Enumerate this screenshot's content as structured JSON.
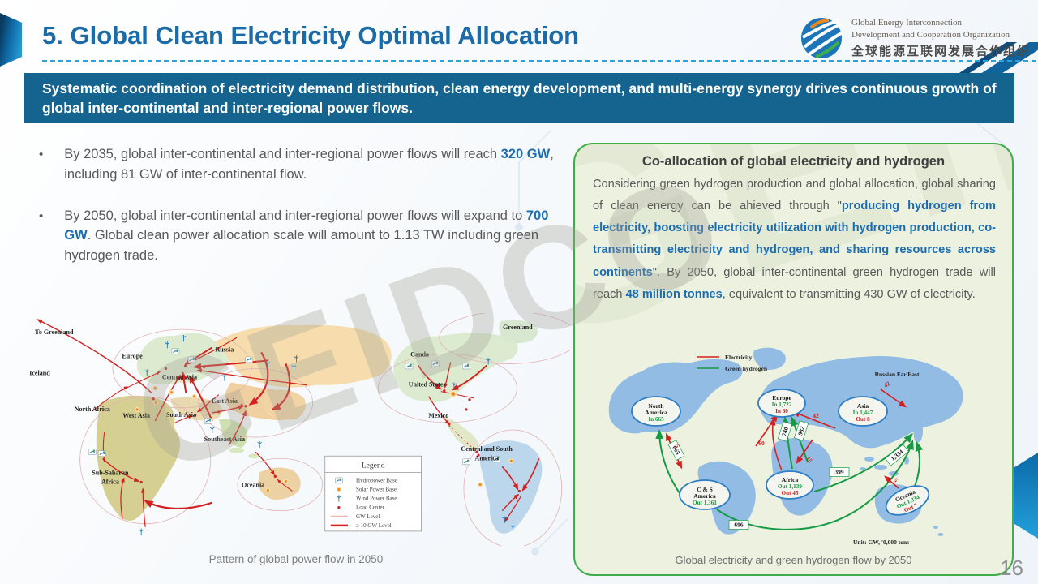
{
  "header": {
    "title": "5. Global Clean Electricity Optimal Allocation",
    "logo": {
      "org_line1": "Global Energy Interconnection",
      "org_line2": "Development and Cooperation Organization",
      "org_cn": "全球能源互联网发展合作组织"
    }
  },
  "banner": {
    "text": "Systematic coordination of electricity demand distribution, clean energy development, and multi-energy synergy drives continuous growth of global inter-continental and inter-regional power flows."
  },
  "bullets": [
    {
      "pre": "By 2035, global inter-continental and inter-regional power flows will reach ",
      "highlight": "320 GW",
      "post": ", including 81 GW of inter-continental flow."
    },
    {
      "pre": "By 2050, global inter-continental and inter-regional power flows will expand to ",
      "highlight": "700 GW",
      "post": ". Global clean power allocation scale will amount to 1.13 TW including green hydrogen trade."
    }
  ],
  "left_map": {
    "caption": "Pattern of global power flow in 2050",
    "labels": {
      "to_greenland": "To Greenland",
      "iceland": "Iceland",
      "europe": "Europe",
      "russia": "Russia",
      "central_asia": "Central Asia",
      "east_asia": "East Asia",
      "north_africa": "North Africa",
      "west_asia": "West Asia",
      "south_asia": "South Asia",
      "southeast_asia": "Southeast Asia",
      "sub_saharan_1": "Sub-Saharan",
      "sub_saharan_2": "Africa",
      "oceania": "Oceania",
      "greenland": "Greenland",
      "canada": "Canda",
      "united_states": "United States",
      "mexico": "Mexico",
      "cs_america_1": "Central and South",
      "cs_america_2": "America"
    },
    "legend": {
      "title": "Legend",
      "items": [
        "Hydropower Base",
        "Solar Power Base",
        "Wind Power Base",
        "Load Center",
        "GW Level",
        "≥ 10 GW Level"
      ]
    }
  },
  "hydrogen_box": {
    "title": "Co-allocation of global electricity and hydrogen",
    "paragraph": [
      {
        "t": "Considering green hydrogen production and global allocation, global sharing of clean energy can be ahieved through \"",
        "b": false
      },
      {
        "t": "producing hydrogen from electricity, boosting electricity utilization with hydrogen production, co-transmitting electricity and hydrogen, and sharing resources across continents",
        "b": true
      },
      {
        "t": "\". By 2050, global inter-continental green hydrogen trade will reach ",
        "b": false
      },
      {
        "t": "48 million tonnes",
        "b": true
      },
      {
        "t": ", equivalent to transmitting 430 GW of electricity.",
        "b": false
      }
    ],
    "map": {
      "legend": {
        "electricity": "Electricity",
        "hydrogen": "Green hydrogen"
      },
      "region_label": "Russian Far East",
      "nodes": [
        {
          "n1": "North",
          "n2": "America",
          "g": "In 665",
          "r": ""
        },
        {
          "n1": "Europe",
          "n2": "",
          "g": "In 1,722",
          "r": "In   60"
        },
        {
          "n1": "Asia",
          "n2": "",
          "g": "In 1,447",
          "r": "Out 8"
        },
        {
          "n1": "Africa",
          "n2": "",
          "g": "Out 1,139",
          "r": "Out 45"
        },
        {
          "n1": "C & S",
          "n2": "America",
          "g": "Out 1,361",
          "r": ""
        },
        {
          "n1": "Oceania",
          "n2": "",
          "g": "Out 1,334",
          "r": "Out 7"
        }
      ],
      "flow_boxes": {
        "na": "665",
        "eu1": "740",
        "eu2": "982",
        "asia": "399",
        "csa": "696",
        "oceania": "1,334"
      },
      "flow_red": {
        "na": "5",
        "eu_west": "60",
        "eu_east": "42",
        "africa": "15",
        "rfe": "42",
        "oceania": "5"
      },
      "unit_note": "Unit:  GW, '0,000 tons",
      "caption": "Global electricity and green hydrogen flow by 2050"
    }
  },
  "page_number": "16",
  "watermark": "GEIDCO"
}
